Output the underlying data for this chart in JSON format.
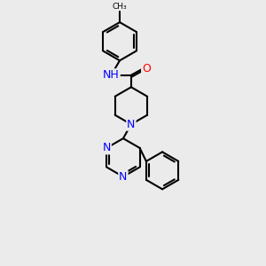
{
  "bg_color": "#ebebeb",
  "bond_color": "#000000",
  "bond_width": 1.5,
  "atom_colors": {
    "N": "#0000ff",
    "O": "#ff0000",
    "NH": "#0000ff",
    "C": "#000000"
  },
  "font_size": 9,
  "figsize": [
    3.0,
    3.0
  ],
  "dpi": 100
}
